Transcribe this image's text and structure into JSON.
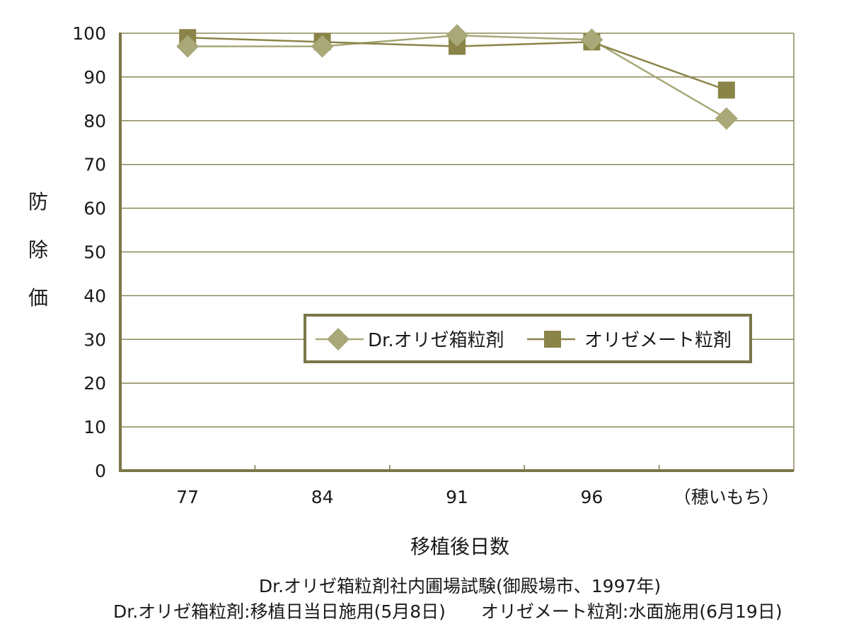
{
  "chart_data": {
    "type": "line",
    "categories": [
      "77",
      "84",
      "91",
      "96",
      "（穂いもち）"
    ],
    "ylabel": "防除価",
    "xlabel": "移植後日数",
    "ylim": [
      0,
      100
    ],
    "yticks": [
      0,
      10,
      20,
      30,
      40,
      50,
      60,
      70,
      80,
      90,
      100
    ],
    "grid": true,
    "legend_position": "lower-right",
    "series": [
      {
        "name": "Dr.オリゼ箱粒剤",
        "marker": "diamond",
        "color": "#a8a878",
        "values": [
          97,
          97,
          99.5,
          98.5,
          80.5
        ]
      },
      {
        "name": "オリゼメート粒剤",
        "marker": "square",
        "color": "#8a8448",
        "values": [
          99,
          98,
          97,
          98,
          87
        ]
      }
    ],
    "axis_color": "#7a7648",
    "grid_color": "#8c8858"
  },
  "caption_line1": "Dr.オリゼ箱粒剤社内圃場試験(御殿場市、1997年)",
  "caption_line2": "Dr.オリゼ箱粒剤:移植日当日施用(5月8日)　　オリゼメート粒剤:水面施用(6月19日)"
}
